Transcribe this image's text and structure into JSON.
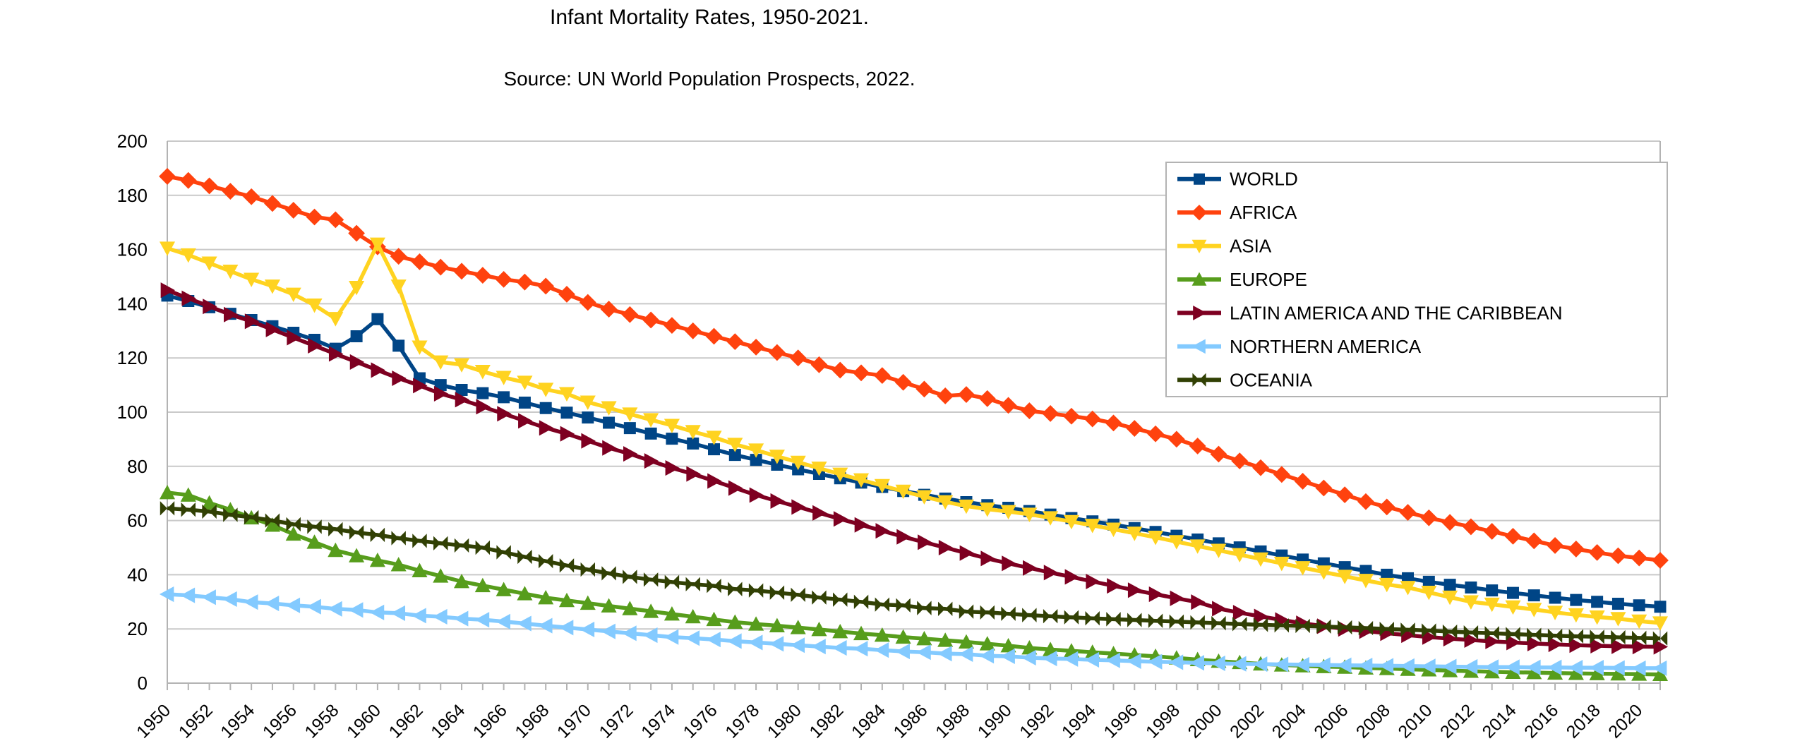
{
  "title": "Infant Mortality Rates, 1950-2021.",
  "subtitle": "Source: UN World Population Prospects, 2022.",
  "chart_data": {
    "type": "line",
    "x_label": "",
    "y_label": "",
    "x": [
      1950,
      1951,
      1952,
      1953,
      1954,
      1955,
      1956,
      1957,
      1958,
      1959,
      1960,
      1961,
      1962,
      1963,
      1964,
      1965,
      1966,
      1967,
      1968,
      1969,
      1970,
      1971,
      1972,
      1973,
      1974,
      1975,
      1976,
      1977,
      1978,
      1979,
      1980,
      1981,
      1982,
      1983,
      1984,
      1985,
      1986,
      1987,
      1988,
      1989,
      1990,
      1991,
      1992,
      1993,
      1994,
      1995,
      1996,
      1997,
      1998,
      1999,
      2000,
      2001,
      2002,
      2003,
      2004,
      2005,
      2006,
      2007,
      2008,
      2009,
      2010,
      2011,
      2012,
      2013,
      2014,
      2015,
      2016,
      2017,
      2018,
      2019,
      2020,
      2021
    ],
    "x_tick_labels": [
      "1950",
      "1952",
      "1954",
      "1956",
      "1958",
      "1960",
      "1962",
      "1964",
      "1966",
      "1968",
      "1970",
      "1972",
      "1974",
      "1976",
      "1978",
      "1980",
      "1982",
      "1984",
      "1986",
      "1988",
      "1990",
      "1992",
      "1994",
      "1996",
      "1998",
      "2000",
      "2002",
      "2004",
      "2006",
      "2008",
      "2010",
      "2012",
      "2014",
      "2016",
      "2018",
      "2020"
    ],
    "ylim": [
      0,
      200
    ],
    "y_ticks": [
      0,
      20,
      40,
      60,
      80,
      100,
      120,
      140,
      160,
      180,
      200
    ],
    "grid": "horizontal",
    "gridline_color": "#c9c9c9",
    "axis_color": "#b3b3b3",
    "text_color": "#000000",
    "legend_position": "top-right-inside",
    "legend_border_color": "#b3b3b3",
    "series": [
      {
        "name": "WORLD",
        "color": "#004586",
        "marker": "square",
        "values": [
          143.0,
          141.0,
          138.7,
          136.3,
          134.0,
          131.7,
          129.3,
          126.7,
          123.4,
          128.0,
          134.3,
          124.5,
          112.5,
          110.0,
          108.2,
          107.0,
          105.5,
          103.5,
          101.5,
          99.8,
          98.0,
          96.1,
          94.1,
          92.1,
          90.2,
          88.4,
          86.3,
          84.2,
          82.4,
          80.6,
          78.9,
          77.2,
          75.6,
          74.0,
          72.4,
          70.9,
          69.5,
          68.1,
          66.8,
          65.7,
          64.7,
          63.5,
          62.2,
          60.9,
          59.7,
          58.5,
          57.2,
          55.8,
          54.4,
          53.0,
          51.6,
          50.1,
          48.6,
          47.1,
          45.6,
          44.2,
          42.8,
          41.4,
          40.0,
          38.7,
          37.4,
          36.3,
          35.3,
          34.2,
          33.3,
          32.4,
          31.5,
          30.7,
          30.0,
          29.3,
          28.7,
          28.2
        ]
      },
      {
        "name": "AFRICA",
        "color": "#FF420E",
        "marker": "diamond",
        "values": [
          187.0,
          185.5,
          183.5,
          181.5,
          179.5,
          177.0,
          174.5,
          172.0,
          171.0,
          166.0,
          161.0,
          157.5,
          155.5,
          153.5,
          152.0,
          150.5,
          149.0,
          148.0,
          146.5,
          143.5,
          140.5,
          138.0,
          136.0,
          134.0,
          132.0,
          130.0,
          128.0,
          126.0,
          124.0,
          122.0,
          120.0,
          117.5,
          115.5,
          114.5,
          113.5,
          111.0,
          108.5,
          106.0,
          106.5,
          105.0,
          102.5,
          100.5,
          99.5,
          98.5,
          97.5,
          96.0,
          94.0,
          92.0,
          90.0,
          87.5,
          84.5,
          82.0,
          79.5,
          77.0,
          74.5,
          72.0,
          69.5,
          67.0,
          65.0,
          63.0,
          61.0,
          59.3,
          57.7,
          56.0,
          54.2,
          52.5,
          50.8,
          49.5,
          48.2,
          47.0,
          46.2,
          45.3
        ]
      },
      {
        "name": "ASIA",
        "color": "#FFD320",
        "marker": "triangle-down",
        "values": [
          160.5,
          158.0,
          155.0,
          152.0,
          149.0,
          146.5,
          143.5,
          139.5,
          134.5,
          146.0,
          162.0,
          146.5,
          124.0,
          118.5,
          117.5,
          115.0,
          112.8,
          111.0,
          108.4,
          106.8,
          103.7,
          101.6,
          99.3,
          97.2,
          95.1,
          92.8,
          90.7,
          88.1,
          86.0,
          83.7,
          81.5,
          79.3,
          77.1,
          75.0,
          72.9,
          70.8,
          68.8,
          66.9,
          65.3,
          64.2,
          63.3,
          62.3,
          61.0,
          59.6,
          58.2,
          56.8,
          55.3,
          53.8,
          52.2,
          50.6,
          49.0,
          47.4,
          45.8,
          44.2,
          42.6,
          41.0,
          39.4,
          37.9,
          36.4,
          35.3,
          33.5,
          31.7,
          30.0,
          29.1,
          28.1,
          27.2,
          26.1,
          25.2,
          24.4,
          23.8,
          22.9,
          22.2
        ]
      },
      {
        "name": "EUROPE",
        "color": "#579D1C",
        "marker": "triangle-up",
        "values": [
          70.3,
          69.4,
          66.5,
          64.0,
          61.0,
          58.3,
          55.0,
          52.0,
          49.0,
          47.0,
          45.3,
          43.7,
          41.5,
          39.5,
          37.5,
          36.0,
          34.5,
          33.0,
          31.5,
          30.5,
          29.5,
          28.5,
          27.5,
          26.5,
          25.5,
          24.5,
          23.5,
          22.5,
          21.8,
          21.2,
          20.5,
          19.8,
          19.0,
          18.3,
          17.7,
          17.0,
          16.4,
          15.8,
          15.2,
          14.5,
          13.8,
          13.0,
          12.4,
          11.9,
          11.4,
          10.9,
          10.4,
          9.9,
          9.3,
          8.7,
          8.1,
          7.6,
          7.1,
          6.7,
          6.4,
          6.1,
          5.9,
          5.6,
          5.4,
          5.1,
          4.9,
          4.6,
          4.4,
          4.2,
          4.0,
          3.9,
          3.7,
          3.6,
          3.5,
          3.4,
          3.3,
          3.2
        ]
      },
      {
        "name": "LATIN AMERICA AND THE CARIBBEAN",
        "color": "#7E0021",
        "marker": "triangle-right",
        "values": [
          145.0,
          142.0,
          139.0,
          136.0,
          133.5,
          130.5,
          127.5,
          124.5,
          121.5,
          118.5,
          115.5,
          112.5,
          109.8,
          106.8,
          104.6,
          102.0,
          99.4,
          96.8,
          94.2,
          92.0,
          89.4,
          86.8,
          84.6,
          82.0,
          79.4,
          77.2,
          74.6,
          72.0,
          69.4,
          67.2,
          65.0,
          62.8,
          60.6,
          58.4,
          56.2,
          54.0,
          52.0,
          50.0,
          48.0,
          46.0,
          44.2,
          42.5,
          40.8,
          39.2,
          37.5,
          35.9,
          34.3,
          32.8,
          31.3,
          29.9,
          27.5,
          26.0,
          24.6,
          23.3,
          22.1,
          21.0,
          20.0,
          19.2,
          18.4,
          17.7,
          17.0,
          16.4,
          15.9,
          15.4,
          15.0,
          14.6,
          14.3,
          14.0,
          13.8,
          13.6,
          13.5,
          13.4
        ]
      },
      {
        "name": "NORTHERN AMERICA",
        "color": "#83CAFF",
        "marker": "triangle-left",
        "values": [
          32.8,
          32.4,
          31.7,
          31.0,
          29.9,
          29.4,
          28.7,
          28.2,
          27.4,
          27.0,
          26.1,
          25.8,
          24.9,
          24.5,
          23.8,
          23.4,
          22.7,
          22.0,
          21.2,
          20.5,
          19.8,
          19.1,
          18.4,
          17.7,
          17.0,
          16.6,
          16.1,
          15.5,
          15.0,
          14.5,
          14.0,
          13.5,
          13.0,
          12.7,
          12.2,
          11.7,
          11.4,
          10.9,
          10.7,
          10.1,
          9.9,
          9.4,
          9.1,
          8.9,
          8.6,
          8.4,
          8.1,
          7.9,
          7.7,
          7.5,
          7.3,
          7.1,
          7.0,
          6.9,
          6.8,
          6.7,
          6.6,
          6.5,
          6.4,
          6.3,
          6.2,
          6.1,
          6.0,
          5.9,
          5.9,
          5.8,
          5.8,
          5.7,
          5.7,
          5.6,
          5.5,
          5.5
        ]
      },
      {
        "name": "OCEANIA",
        "color": "#314004",
        "marker": "bowtie",
        "values": [
          64.5,
          64.0,
          63.3,
          62.1,
          61.2,
          60.0,
          58.6,
          57.7,
          56.8,
          55.6,
          54.7,
          53.5,
          52.5,
          51.6,
          50.8,
          50.0,
          48.3,
          46.6,
          45.0,
          43.4,
          41.9,
          40.5,
          39.2,
          38.2,
          37.3,
          36.5,
          35.9,
          34.7,
          34.2,
          33.4,
          32.6,
          31.6,
          30.8,
          30.0,
          29.0,
          28.7,
          27.7,
          27.4,
          26.4,
          26.1,
          25.6,
          25.1,
          24.7,
          24.3,
          23.9,
          23.6,
          23.3,
          23.0,
          22.7,
          22.4,
          22.1,
          21.8,
          21.5,
          21.3,
          21.1,
          20.9,
          20.6,
          20.3,
          20.0,
          19.7,
          19.4,
          19.0,
          18.7,
          18.4,
          18.1,
          17.8,
          17.5,
          17.3,
          17.1,
          16.9,
          16.7,
          16.5
        ]
      }
    ]
  }
}
